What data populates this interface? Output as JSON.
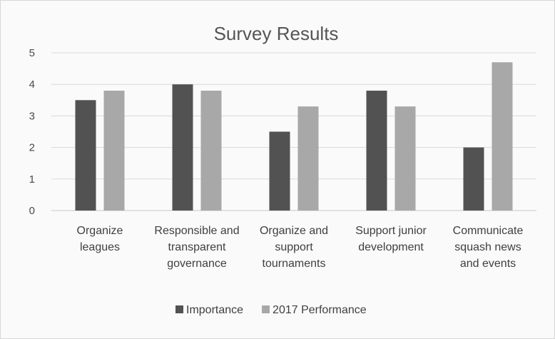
{
  "chart_data": {
    "type": "bar",
    "title": "Survey Results",
    "categories": [
      [
        "Organize",
        "leagues"
      ],
      [
        "Responsible and",
        "transparent",
        "governance"
      ],
      [
        "Organize and",
        "support",
        "tournaments"
      ],
      [
        "Support junior",
        "development"
      ],
      [
        "Communicate",
        "squash news",
        "and events"
      ]
    ],
    "series": [
      {
        "name": "Importance",
        "color": "#525252",
        "values": [
          3.5,
          4.0,
          2.5,
          3.8,
          2.0
        ]
      },
      {
        "name": "2017 Performance",
        "color": "#a8a8a8",
        "values": [
          3.8,
          3.8,
          3.3,
          3.3,
          4.7
        ]
      }
    ],
    "ylim": [
      0,
      5
    ],
    "yticks": [
      0,
      1,
      2,
      3,
      4,
      5
    ],
    "grid": true,
    "legend_position": "bottom"
  }
}
